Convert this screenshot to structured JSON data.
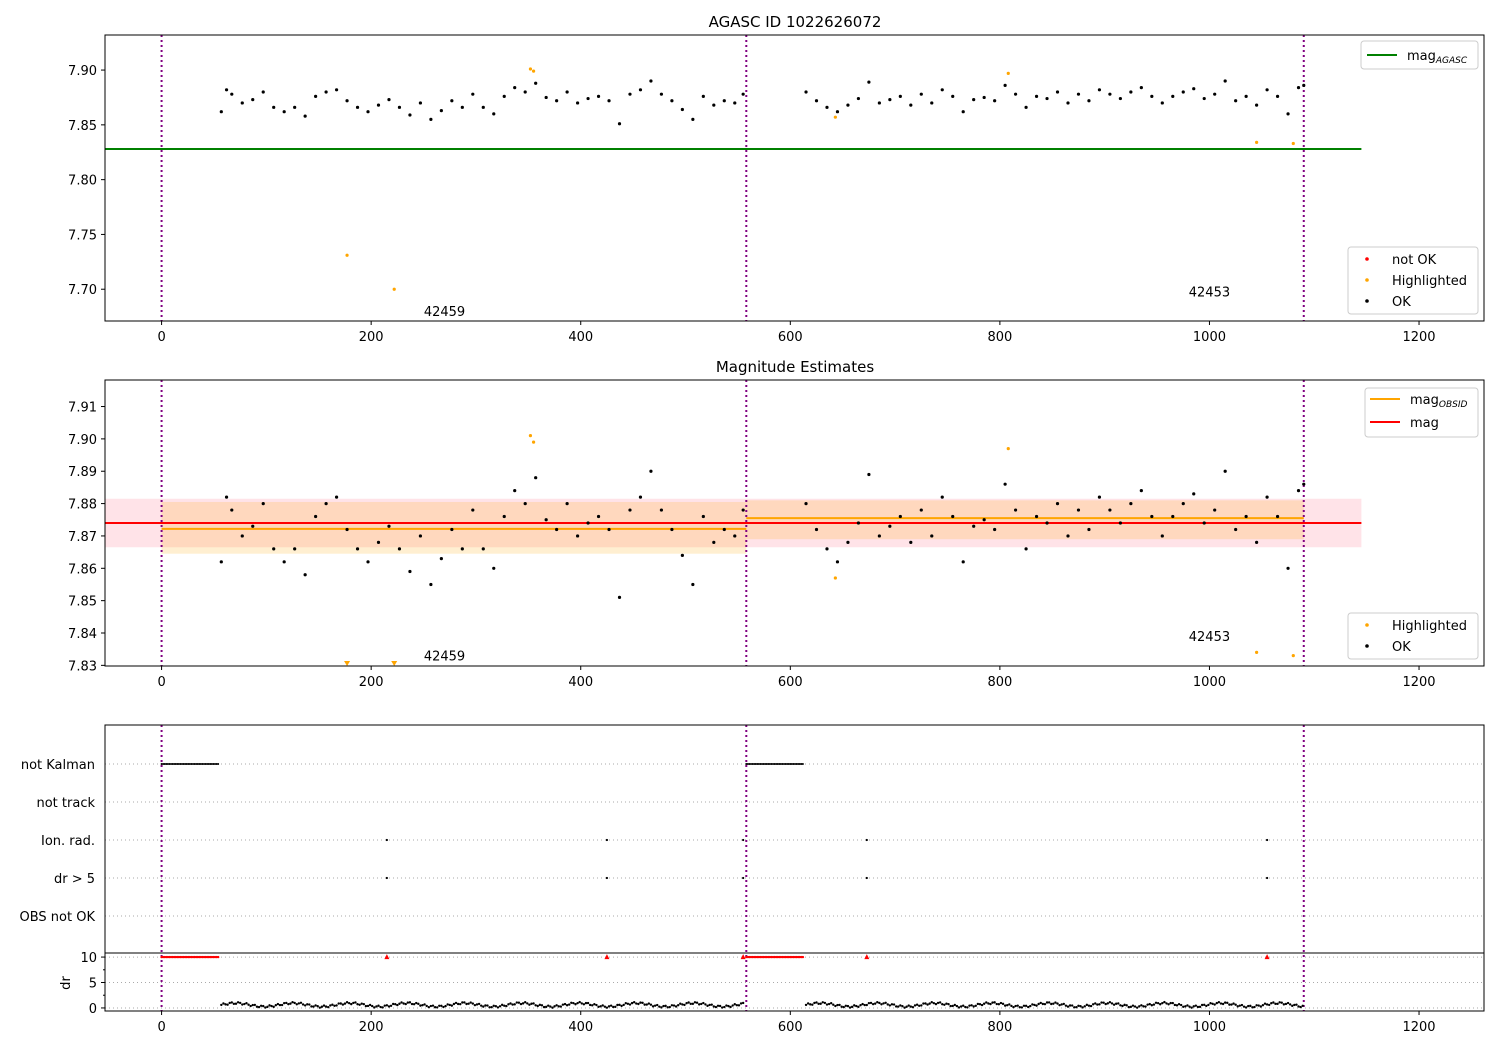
{
  "chart_data": [
    {
      "type": "scatter",
      "title": "AGASC ID 1022626072",
      "xlim": [
        -54,
        1262
      ],
      "ylim": [
        7.671,
        7.932
      ],
      "xticks": [
        0,
        200,
        400,
        600,
        800,
        1000,
        1200
      ],
      "yticks": [
        7.7,
        7.75,
        7.8,
        7.85,
        7.9
      ],
      "ytick_labels": [
        "7.70",
        "7.75",
        "7.80",
        "7.85",
        "7.90"
      ],
      "vlines": [
        0,
        558,
        1090
      ],
      "hline": {
        "name": "mag_AGASC",
        "label": "mag",
        "sub": "AGASC",
        "value": 7.828,
        "x": [
          -54,
          1145
        ],
        "color": "#008000"
      },
      "obsid_labels": [
        {
          "text": "42459",
          "x": 270,
          "y": 7.68
        },
        {
          "text": "42453",
          "x": 1000,
          "y": 7.698
        }
      ],
      "legend_top": "top-right",
      "legend_bottom": {
        "position": "bottom-right",
        "entries": [
          {
            "label": "not OK",
            "color": "#ff0000"
          },
          {
            "label": "Highlighted",
            "color": "#ffa500"
          },
          {
            "label": "OK",
            "color": "#000000"
          }
        ]
      }
    },
    {
      "type": "scatter",
      "title": "Magnitude Estimates",
      "xlim": [
        -54,
        1262
      ],
      "ylim": [
        7.8298,
        7.9182
      ],
      "xticks": [
        0,
        200,
        400,
        600,
        800,
        1000,
        1200
      ],
      "yticks": [
        7.83,
        7.84,
        7.85,
        7.86,
        7.87,
        7.88,
        7.89,
        7.9,
        7.91
      ],
      "ytick_labels": [
        "7.83",
        "7.84",
        "7.85",
        "7.86",
        "7.87",
        "7.88",
        "7.89",
        "7.90",
        "7.91"
      ],
      "vlines": [
        0,
        558,
        1090
      ],
      "mag": {
        "label": "mag",
        "value": 7.874,
        "band": [
          7.8665,
          7.8815
        ],
        "x": [
          -54,
          1145
        ],
        "color": "#ff0000",
        "band_color": "#ffc0cb"
      },
      "mag_obsid": {
        "label": "mag",
        "sub": "OBSID",
        "color": "#ffa500",
        "segments": [
          {
            "x": [
              0,
              558
            ],
            "value": 7.8722,
            "band": [
              7.8645,
              7.8805
            ]
          },
          {
            "x": [
              558,
              1090
            ],
            "value": 7.8755,
            "band": [
              7.869,
              7.881
            ]
          }
        ]
      },
      "obsid_labels": [
        {
          "text": "42459",
          "x": 270,
          "y": 7.833
        },
        {
          "text": "42453",
          "x": 1000,
          "y": 7.839
        }
      ],
      "legend_bottom": {
        "position": "bottom-right",
        "entries": [
          {
            "label": "Highlighted",
            "color": "#ffa500"
          },
          {
            "label": "OK",
            "color": "#000000"
          }
        ]
      }
    },
    {
      "type": "scatter",
      "xlim": [
        -54,
        1262
      ],
      "xticks": [
        0,
        200,
        400,
        600,
        800,
        1000,
        1200
      ],
      "categories": [
        "not Kalman",
        "not track",
        "Ion. rad.",
        "dr > 5",
        "OBS not OK"
      ],
      "flags": {
        "not Kalman": {
          "ranges": [
            [
              0,
              55
            ],
            [
              558,
              613
            ]
          ]
        },
        "not track": {
          "ranges": []
        },
        "Ion. rad.": {
          "points": [
            215,
            425,
            555,
            673,
            1055
          ]
        },
        "dr > 5": {
          "points": [
            215,
            425,
            555,
            673,
            1055
          ]
        },
        "OBS not OK": {
          "ranges": []
        }
      },
      "dr": {
        "ylabel": "dr",
        "ylim": [
          -0.6,
          10.8
        ],
        "yticks": [
          0,
          5,
          10
        ],
        "ytick_labels": [
          "0",
          "5",
          "10"
        ],
        "clipped_value": 10,
        "clipped_ranges": [
          [
            0,
            55
          ],
          [
            558,
            613
          ]
        ],
        "clipped_points": [
          215,
          425,
          555,
          673,
          1055
        ],
        "ok_segments": [
          {
            "x": [
              57,
              555
            ],
            "value": 0.6
          },
          {
            "x": [
              615,
              1090
            ],
            "value": 0.6
          }
        ]
      },
      "vlines": [
        0,
        558,
        1090
      ]
    }
  ],
  "series": {
    "ok": {
      "x": [
        57,
        62,
        67,
        77,
        87,
        97,
        107,
        117,
        127,
        137,
        147,
        157,
        167,
        177,
        187,
        197,
        207,
        217,
        227,
        237,
        247,
        257,
        267,
        277,
        287,
        297,
        307,
        317,
        327,
        337,
        347,
        357,
        367,
        377,
        387,
        397,
        407,
        417,
        427,
        437,
        447,
        457,
        467,
        477,
        487,
        497,
        507,
        517,
        527,
        537,
        547,
        555,
        615,
        625,
        635,
        645,
        655,
        665,
        675,
        685,
        695,
        705,
        715,
        725,
        735,
        745,
        755,
        765,
        775,
        785,
        795,
        805,
        815,
        825,
        835,
        845,
        855,
        865,
        875,
        885,
        895,
        905,
        915,
        925,
        935,
        945,
        955,
        965,
        975,
        985,
        995,
        1005,
        1015,
        1025,
        1035,
        1045,
        1055,
        1065,
        1075,
        1085,
        1090
      ],
      "y": [
        7.862,
        7.882,
        7.878,
        7.87,
        7.873,
        7.88,
        7.866,
        7.862,
        7.866,
        7.858,
        7.876,
        7.88,
        7.882,
        7.872,
        7.866,
        7.862,
        7.868,
        7.873,
        7.866,
        7.859,
        7.87,
        7.855,
        7.863,
        7.872,
        7.866,
        7.878,
        7.866,
        7.86,
        7.876,
        7.884,
        7.88,
        7.888,
        7.875,
        7.872,
        7.88,
        7.87,
        7.874,
        7.876,
        7.872,
        7.851,
        7.878,
        7.882,
        7.89,
        7.878,
        7.872,
        7.864,
        7.855,
        7.876,
        7.868,
        7.872,
        7.87,
        7.878,
        7.88,
        7.872,
        7.866,
        7.862,
        7.868,
        7.874,
        7.889,
        7.87,
        7.873,
        7.876,
        7.868,
        7.878,
        7.87,
        7.882,
        7.876,
        7.862,
        7.873,
        7.875,
        7.872,
        7.886,
        7.878,
        7.866,
        7.876,
        7.874,
        7.88,
        7.87,
        7.878,
        7.872,
        7.882,
        7.878,
        7.874,
        7.88,
        7.884,
        7.876,
        7.87,
        7.876,
        7.88,
        7.883,
        7.874,
        7.878,
        7.89,
        7.872,
        7.876,
        7.868,
        7.882,
        7.876,
        7.86,
        7.884,
        7.886
      ]
    },
    "highlighted": {
      "x": [
        177,
        222,
        352,
        355,
        643,
        808,
        1045,
        1080
      ],
      "y": [
        7.731,
        7.7,
        7.901,
        7.899,
        7.857,
        7.897,
        7.834,
        7.833
      ]
    }
  },
  "colors": {
    "vline": "#800080",
    "ok": "#000000",
    "highlighted": "#ffa500",
    "not_ok": "#ff0000"
  }
}
